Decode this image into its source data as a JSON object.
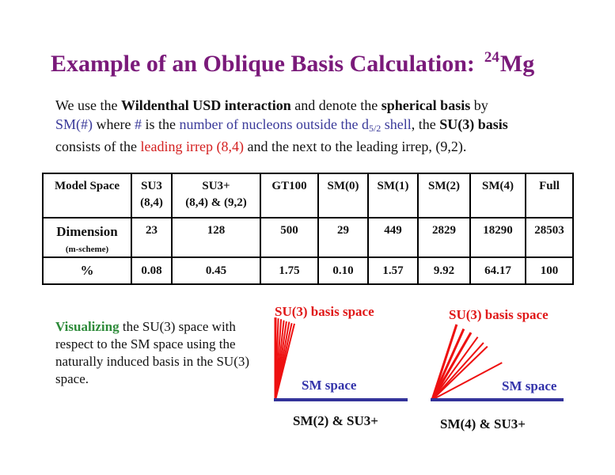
{
  "title": {
    "prefix": "Example of an Oblique Basis Calculation:",
    "superscript": "24",
    "element": "Mg"
  },
  "intro": {
    "t1": "We use the ",
    "t2": "Wildenthal USD interaction",
    "t3": " and denote the ",
    "t4": "spherical basis",
    "t5": " by ",
    "t6": "SM(#)",
    "t7": " where ",
    "t8": "#",
    "t9": " is the ",
    "t10": "number of nucleons outside the  d",
    "t11": "5/2",
    "t12": " shell",
    "t13": ", the ",
    "t14": "SU(3) basis",
    "t15": " consists of the ",
    "t16": "leading irrep (8,4)",
    "t17": " and the next to the leading irrep, (9,2)."
  },
  "table": {
    "header_label": "Model Space",
    "columns": [
      {
        "line1": "SU3",
        "line2": "(8,4)"
      },
      {
        "line1": "SU3+",
        "line2": "(8,4) &  (9,2)"
      },
      {
        "line1": "GT100",
        "line2": ""
      },
      {
        "line1": "SM(0)",
        "line2": ""
      },
      {
        "line1": "SM(1)",
        "line2": ""
      },
      {
        "line1": "SM(2)",
        "line2": ""
      },
      {
        "line1": "SM(4)",
        "line2": ""
      },
      {
        "line1": "Full",
        "line2": ""
      }
    ],
    "dimension_label": "Dimension",
    "dimension_sublabel": "(m-scheme)",
    "dimension_values": [
      "23",
      "128",
      "500",
      "29",
      "449",
      "2829",
      "18290",
      "28503"
    ],
    "percent_label": "%",
    "percent_values": [
      "0.08",
      "0.45",
      "1.75",
      "0.10",
      "1.57",
      "9.92",
      "64.17",
      "100"
    ]
  },
  "visualizing": {
    "lead": "Visualizing",
    "rest": " the SU(3) space with respect to the SM space using the naturally induced basis in the SU(3) space."
  },
  "figures": [
    {
      "su3_label": "SU(3) basis space",
      "sm_label": "SM space",
      "caption": "SM(2) & SU3+"
    },
    {
      "su3_label": "SU(3) basis space",
      "sm_label": "SM space",
      "caption": "SM(4) & SU3+"
    }
  ],
  "colors": {
    "title": "#7a1a7a",
    "blue_text": "#3a3a9a",
    "red_text": "#d42020",
    "green_text": "#2e8b3a",
    "sm_line": "#33339a",
    "su3_rays": "#ee1010"
  }
}
